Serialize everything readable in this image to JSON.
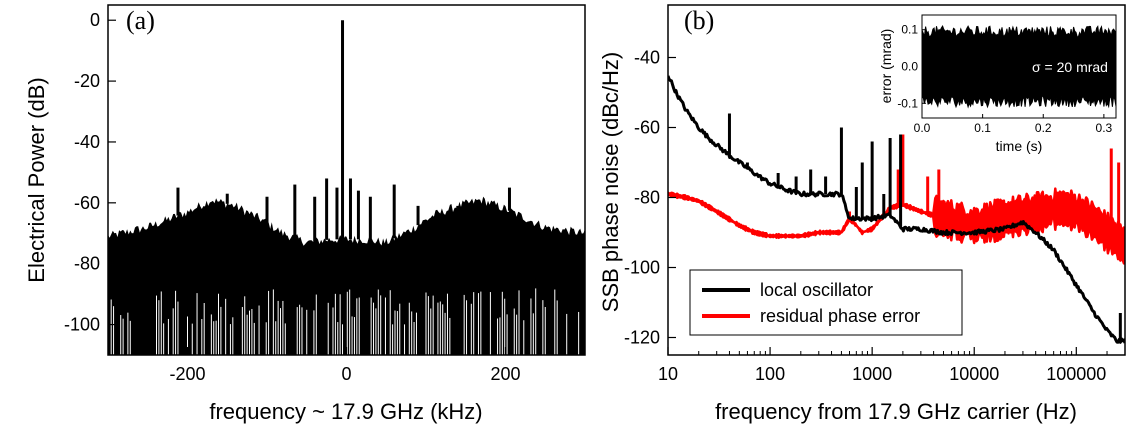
{
  "chart_data": [
    {
      "id": "a",
      "type": "line",
      "panel_label": "(a)",
      "xlabel": "frequency ~ 17.9 GHz (kHz)",
      "ylabel": "Electrical Power (dB)",
      "xlim": [
        -300,
        300
      ],
      "ylim": [
        -110,
        5
      ],
      "x_ticks": [
        -200,
        0,
        200
      ],
      "y_ticks": [
        0,
        -20,
        -40,
        -60,
        -80,
        -100
      ],
      "grid": false,
      "series": [
        {
          "color": "#000000",
          "baseline_envelope": {
            "x": [
              -300,
              -250,
              -200,
              -170,
              -140,
              -110,
              -80,
              -50,
              -20,
              0,
              20,
              50,
              80,
              110,
              140,
              170,
              200,
              250,
              300
            ],
            "upper": [
              -71,
              -68,
              -63,
              -59,
              -61,
              -65,
              -70,
              -73,
              -72,
              -72,
              -72,
              -73,
              -69,
              -64,
              -61,
              -59,
              -62,
              -68,
              -70
            ],
            "lower": -110
          },
          "peaks": [
            {
              "x": -5,
              "y": 0
            },
            {
              "x": -212,
              "y": -55
            },
            {
              "x": -150,
              "y": -57
            },
            {
              "x": -100,
              "y": -58
            },
            {
              "x": -65,
              "y": -54
            },
            {
              "x": -40,
              "y": -58
            },
            {
              "x": -25,
              "y": -52
            },
            {
              "x": -12,
              "y": -55
            },
            {
              "x": 5,
              "y": -52
            },
            {
              "x": 15,
              "y": -56
            },
            {
              "x": 30,
              "y": -58
            },
            {
              "x": 60,
              "y": -54
            },
            {
              "x": 90,
              "y": -61
            },
            {
              "x": 140,
              "y": -62
            },
            {
              "x": 205,
              "y": -55
            }
          ]
        }
      ]
    },
    {
      "id": "b",
      "type": "line",
      "panel_label": "(b)",
      "xlabel": "frequency from 17.9 GHz carrier (Hz)",
      "ylabel": "SSB phase noise (dBc/Hz)",
      "x_scale": "log",
      "xlim": [
        10,
        300000
      ],
      "ylim": [
        -125,
        -25
      ],
      "x_ticks": [
        10,
        100,
        1000,
        10000,
        100000
      ],
      "x_tick_labels": [
        "10",
        "100",
        "1000",
        "10000",
        "100000"
      ],
      "y_ticks": [
        -40,
        -60,
        -80,
        -100,
        -120
      ],
      "grid": false,
      "legend": {
        "position": "bottom-left"
      },
      "series": [
        {
          "name": "local oscillator",
          "color": "#000000",
          "x": [
            10,
            12,
            15,
            20,
            25,
            30,
            40,
            50,
            70,
            100,
            150,
            200,
            300,
            400,
            500,
            600,
            800,
            1000,
            1500,
            2000,
            3000,
            5000,
            10000,
            20000,
            30000,
            40000,
            60000,
            100000,
            150000,
            200000,
            250000,
            300000
          ],
          "y": [
            -45,
            -50,
            -55,
            -60,
            -63,
            -65,
            -68,
            -70,
            -73,
            -76,
            -78,
            -79,
            -79,
            -79,
            -79,
            -86,
            -86,
            -86,
            -85,
            -89,
            -89,
            -90,
            -90,
            -89,
            -87,
            -90,
            -95,
            -105,
            -113,
            -118,
            -121,
            -121
          ],
          "spikes": [
            {
              "x": 40,
              "y": -56
            },
            {
              "x": 60,
              "y": -70
            },
            {
              "x": 80,
              "y": -74
            },
            {
              "x": 120,
              "y": -73
            },
            {
              "x": 180,
              "y": -74
            },
            {
              "x": 250,
              "y": -72
            },
            {
              "x": 350,
              "y": -74
            },
            {
              "x": 500,
              "y": -60
            },
            {
              "x": 700,
              "y": -77
            },
            {
              "x": 800,
              "y": -70
            },
            {
              "x": 1000,
              "y": -64
            },
            {
              "x": 1300,
              "y": -79
            },
            {
              "x": 1500,
              "y": -63
            },
            {
              "x": 1900,
              "y": -62
            },
            {
              "x": 270000,
              "y": -113
            }
          ]
        },
        {
          "name": "residual phase error",
          "color": "#ff0000",
          "x": [
            10,
            15,
            20,
            30,
            50,
            70,
            100,
            150,
            200,
            300,
            400,
            500,
            600,
            700,
            800,
            1000,
            1500,
            2000,
            3000,
            5000,
            10000,
            20000,
            30000,
            50000,
            70000,
            100000,
            150000,
            200000,
            250000,
            300000
          ],
          "y": [
            -79,
            -80,
            -81,
            -84,
            -88,
            -90,
            -91,
            -91,
            -91,
            -90,
            -90,
            -90,
            -86,
            -88,
            -90,
            -89,
            -83,
            -82,
            -84,
            -86,
            -88,
            -86,
            -85,
            -84,
            -83,
            -84,
            -87,
            -90,
            -92,
            -94
          ],
          "band_halfwidth": 4,
          "spikes": [
            {
              "x": 600,
              "y": -84
            },
            {
              "x": 1800,
              "y": -72
            },
            {
              "x": 2000,
              "y": -62
            },
            {
              "x": 3500,
              "y": -74
            },
            {
              "x": 4500,
              "y": -72
            },
            {
              "x": 220000,
              "y": -66
            },
            {
              "x": 260000,
              "y": -70
            }
          ]
        }
      ],
      "inset": {
        "xlabel": "time (s)",
        "ylabel": "error (mrad)",
        "xlim": [
          0,
          0.32
        ],
        "ylim": [
          -0.14,
          0.14
        ],
        "x_ticks": [
          0.0,
          0.1,
          0.2,
          0.3
        ],
        "x_tick_labels": [
          "0.0",
          "0.1",
          "0.2",
          "0.3"
        ],
        "y_ticks": [
          0.1,
          0.0,
          -0.1
        ],
        "y_tick_labels": [
          "0.1",
          "0.0",
          "-0.1"
        ],
        "annotation": "σ = 20 mrad",
        "band": [
          -0.095,
          0.095
        ],
        "color": "#000000"
      }
    }
  ]
}
